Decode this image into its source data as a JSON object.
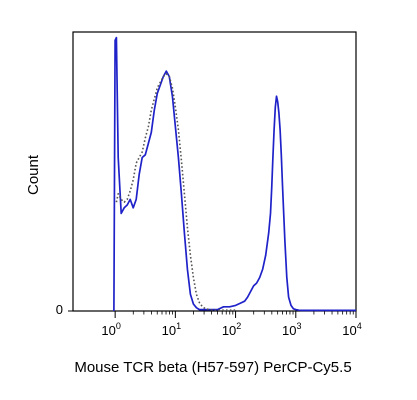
{
  "chart_data": {
    "type": "line",
    "title": "",
    "xlabel": "Mouse TCR beta (H57-597) PerCP-Cy5.5",
    "ylabel": "Count",
    "x_scale": "log",
    "xlim": [
      -0.7,
      4
    ],
    "ylim": [
      0,
      100
    ],
    "grid": false,
    "legend": "none",
    "x_ticks": [
      {
        "value": 0,
        "base": "10",
        "exp": "0"
      },
      {
        "value": 1,
        "base": "10",
        "exp": "1"
      },
      {
        "value": 2,
        "base": "10",
        "exp": "2"
      },
      {
        "value": 3,
        "base": "10",
        "exp": "3"
      },
      {
        "value": 4,
        "base": "10",
        "exp": "4"
      }
    ],
    "y_ticks": [
      {
        "value": 0,
        "label": "0"
      }
    ],
    "series": [
      {
        "style": "solid",
        "color": "#1f22c8",
        "x": [
          -0.02,
          0.0,
          0.02,
          0.05,
          0.1,
          0.15,
          0.2,
          0.25,
          0.3,
          0.35,
          0.4,
          0.45,
          0.5,
          0.55,
          0.6,
          0.65,
          0.7,
          0.75,
          0.8,
          0.85,
          0.9,
          0.95,
          1.0,
          1.05,
          1.1,
          1.15,
          1.2,
          1.25,
          1.3,
          1.35,
          1.4,
          1.5,
          1.6,
          1.7,
          1.8,
          1.9,
          2.0,
          2.05,
          2.1,
          2.15,
          2.2,
          2.25,
          2.3,
          2.35,
          2.4,
          2.45,
          2.5,
          2.55,
          2.58,
          2.6,
          2.62,
          2.64,
          2.66,
          2.68,
          2.7,
          2.72,
          2.74,
          2.76,
          2.78,
          2.8,
          2.82,
          2.85,
          2.88,
          2.92,
          2.96,
          3.0,
          3.05,
          3.1,
          3.2,
          3.3,
          3.5,
          3.7,
          3.9,
          4.0
        ],
        "y": [
          0,
          97,
          98,
          55,
          35,
          37,
          38,
          40,
          37,
          40,
          49,
          55,
          56,
          60,
          64,
          72,
          78,
          81,
          84,
          86,
          84,
          77,
          66,
          55,
          42,
          28,
          15,
          6,
          2.5,
          1.2,
          0.5,
          0.5,
          0.5,
          0.5,
          1.5,
          1.5,
          2.0,
          2.5,
          3.0,
          3.5,
          5.0,
          7.0,
          9.0,
          10.0,
          12.0,
          15.0,
          20.0,
          28.0,
          35.0,
          44.0,
          55.0,
          65.0,
          73.0,
          77.0,
          75.0,
          71.0,
          65.0,
          56.0,
          45.0,
          35.0,
          25.0,
          12.0,
          5.0,
          2.0,
          0.8,
          0.5,
          0.3,
          0.2,
          0.2,
          0.2,
          0.2,
          0.2,
          0.2,
          0.2
        ]
      },
      {
        "style": "dotted",
        "color": "#555555",
        "x": [
          0.02,
          0.05,
          0.1,
          0.15,
          0.2,
          0.25,
          0.3,
          0.35,
          0.4,
          0.45,
          0.5,
          0.55,
          0.6,
          0.65,
          0.7,
          0.75,
          0.8,
          0.85,
          0.9,
          0.95,
          1.0,
          1.05,
          1.1,
          1.15,
          1.2,
          1.25,
          1.3,
          1.35,
          1.4,
          1.45,
          1.5,
          1.6,
          1.7,
          1.8,
          1.9,
          2.0
        ],
        "y": [
          39,
          42,
          40,
          39,
          40,
          43,
          47,
          53,
          55,
          57,
          62,
          66,
          72,
          76,
          80,
          82,
          84,
          85,
          84,
          80,
          73,
          65,
          54,
          42,
          30,
          20,
          12,
          6,
          3,
          1.5,
          0.8,
          0.4,
          0.3,
          0.3,
          0.3,
          0.3
        ]
      }
    ]
  }
}
